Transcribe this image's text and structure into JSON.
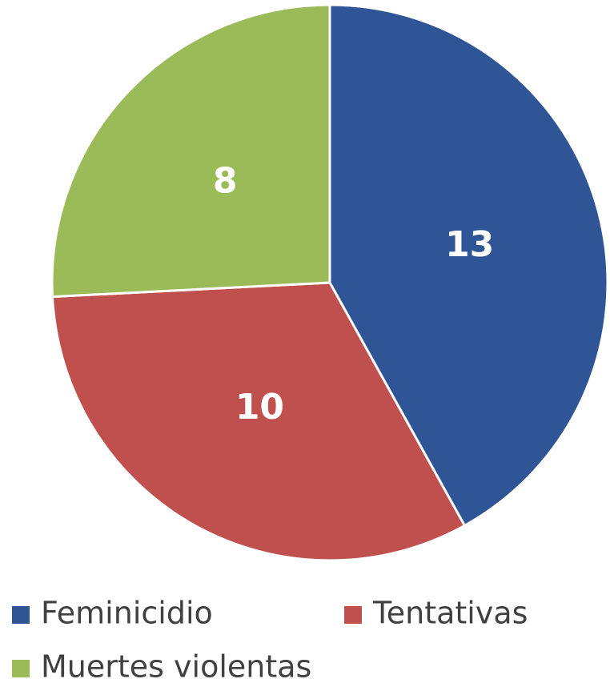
{
  "chart_data": {
    "type": "pie",
    "categories": [
      "Feminicidio",
      "Tentativas",
      "Muertes violentas"
    ],
    "values": [
      13,
      10,
      8
    ],
    "colors": [
      "#2f5597",
      "#c0504d",
      "#9bbb59"
    ],
    "legend": "bottom"
  }
}
